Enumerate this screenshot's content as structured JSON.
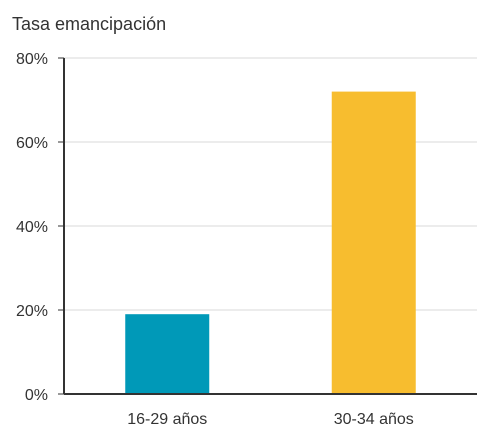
{
  "chart_data": {
    "type": "bar",
    "title": "Tasa emancipación",
    "xlabel": "",
    "ylabel": "",
    "categories": [
      "16-29 años",
      "30-34 años"
    ],
    "values": [
      19,
      72
    ],
    "colors": [
      "#0099b8",
      "#f7bd2f"
    ],
    "ylim": [
      0,
      80
    ],
    "yticks": [
      0,
      20,
      40,
      60,
      80
    ],
    "ytick_labels": [
      "0%",
      "20%",
      "40%",
      "60%",
      "80%"
    ],
    "grid": true,
    "legend": "none"
  }
}
